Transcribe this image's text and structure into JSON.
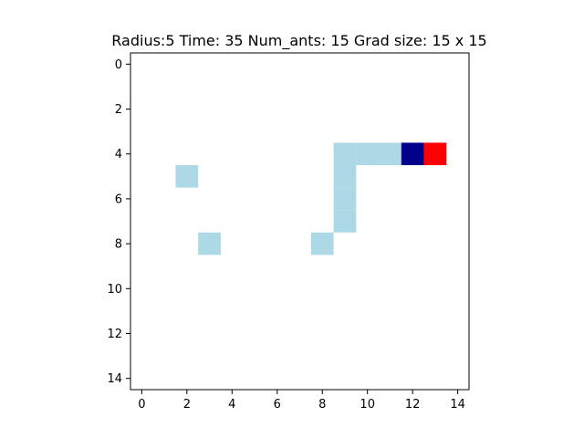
{
  "chart_data": {
    "type": "heatmap",
    "title": "Radius:5 Time: 35 Num_ants: 15 Grad size: 15 x 15",
    "grid_size": [
      15,
      15
    ],
    "xlim": [
      -0.5,
      14.5
    ],
    "ylim": [
      14.5,
      -0.5
    ],
    "x_ticks": [
      0,
      2,
      4,
      6,
      8,
      10,
      12,
      14
    ],
    "y_ticks": [
      0,
      2,
      4,
      6,
      8,
      10,
      12,
      14
    ],
    "background_color": "#ffffff",
    "legend": "none",
    "grid": false,
    "cells": [
      {
        "row": 4,
        "col": 9,
        "state": "trail"
      },
      {
        "row": 4,
        "col": 10,
        "state": "trail"
      },
      {
        "row": 4,
        "col": 11,
        "state": "trail"
      },
      {
        "row": 4,
        "col": 12,
        "state": "ant"
      },
      {
        "row": 4,
        "col": 13,
        "state": "target"
      },
      {
        "row": 5,
        "col": 2,
        "state": "trail"
      },
      {
        "row": 5,
        "col": 9,
        "state": "trail"
      },
      {
        "row": 6,
        "col": 9,
        "state": "trail"
      },
      {
        "row": 7,
        "col": 9,
        "state": "trail"
      },
      {
        "row": 8,
        "col": 3,
        "state": "trail"
      },
      {
        "row": 8,
        "col": 8,
        "state": "trail"
      }
    ],
    "state_colors": {
      "trail": "#add8e6",
      "ant": "#00008b",
      "target": "#ff0000"
    }
  }
}
